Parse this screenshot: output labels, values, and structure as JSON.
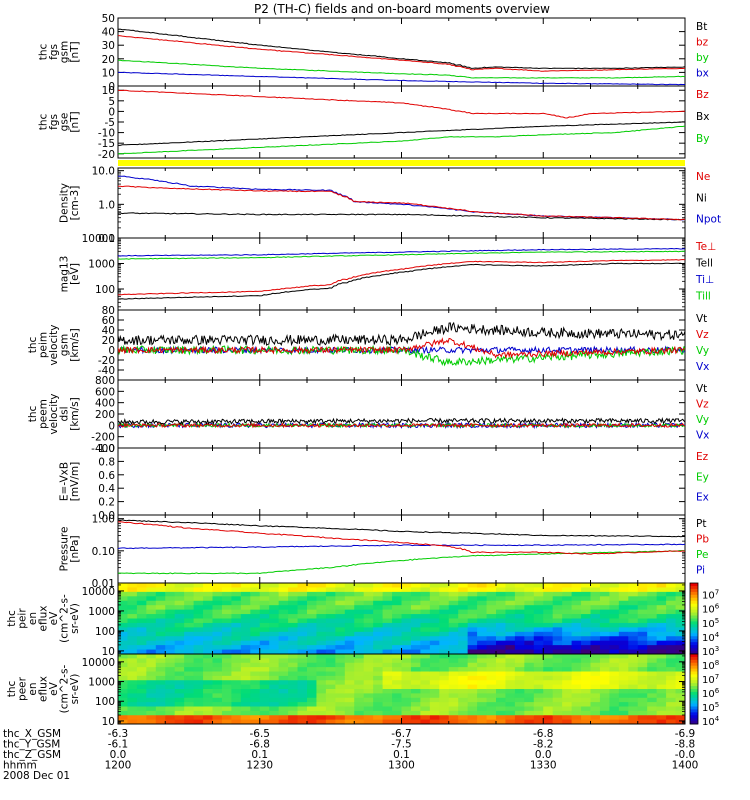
{
  "title": "P2 (TH-C) fields and on-board moments overview",
  "colors": {
    "black": "#000000",
    "red": "#e00000",
    "green": "#00cc00",
    "blue": "#0000cc",
    "yellow": "#ffff00"
  },
  "x_axis": {
    "ticks": [
      "1200",
      "1230",
      "1300",
      "1330",
      "1400"
    ],
    "rows": [
      {
        "label": "thc_X_GSM",
        "values": [
          "-6.3",
          "-6.5",
          "-6.7",
          "-6.8",
          "-6.9"
        ]
      },
      {
        "label": "thc_Y_GSM",
        "values": [
          "-6.1",
          "-6.8",
          "-7.5",
          "-8.2",
          "-8.8"
        ]
      },
      {
        "label": "thc_Z_GSM",
        "values": [
          "0.0",
          "0.1",
          "0.1",
          "0.0",
          "-0.0"
        ]
      },
      {
        "label": "hhmm",
        "values": [
          "1200",
          "1230",
          "1300",
          "1330",
          "1400"
        ]
      }
    ],
    "date": "2008 Dec 01"
  },
  "chart_data": [
    {
      "id": "fgs_gsm",
      "type": "line",
      "ylabel": [
        "thc",
        "fgs",
        "gsm",
        "[nT]"
      ],
      "ylim": [
        0,
        50
      ],
      "yticks": [
        "0",
        "10",
        "20",
        "30",
        "40",
        "50"
      ],
      "ytick_values": [
        0,
        10,
        20,
        30,
        40,
        50
      ],
      "series": [
        {
          "name": "Bt",
          "color": "#000000",
          "x": [
            1200,
            1215,
            1230,
            1245,
            1300,
            1310,
            1315,
            1320,
            1330,
            1345,
            1400
          ],
          "values": [
            42,
            36,
            30,
            25,
            20,
            17,
            13,
            14,
            13,
            13,
            14
          ]
        },
        {
          "name": "bz",
          "color": "#e00000",
          "x": [
            1200,
            1215,
            1230,
            1245,
            1300,
            1310,
            1315,
            1320,
            1330,
            1345,
            1400
          ],
          "values": [
            37,
            32,
            27,
            23,
            19,
            16,
            12,
            13,
            11,
            12,
            13
          ]
        },
        {
          "name": "by",
          "color": "#00cc00",
          "x": [
            1200,
            1215,
            1230,
            1245,
            1300,
            1310,
            1315,
            1330,
            1345,
            1400
          ],
          "values": [
            19,
            16,
            13,
            11,
            9,
            8,
            6,
            6,
            6,
            7
          ]
        },
        {
          "name": "bx",
          "color": "#0000cc",
          "x": [
            1200,
            1230,
            1300,
            1330,
            1400
          ],
          "values": [
            10,
            7,
            4,
            2,
            1
          ]
        }
      ]
    },
    {
      "id": "fgs_gse",
      "type": "line",
      "ylabel": [
        "thc",
        "fgs",
        "gse",
        "[nT]"
      ],
      "ylim": [
        -22,
        12
      ],
      "yticks": [
        "-20",
        "-15",
        "-10",
        "-5",
        "0",
        "5",
        "10"
      ],
      "ytick_values": [
        -20,
        -15,
        -10,
        -5,
        0,
        5,
        10
      ],
      "series": [
        {
          "name": "Bz",
          "color": "#e00000",
          "x": [
            1200,
            1220,
            1240,
            1300,
            1310,
            1315,
            1330,
            1335,
            1340,
            1400
          ],
          "values": [
            10,
            8,
            6,
            4,
            1,
            -1,
            -1,
            -3,
            -1,
            0
          ]
        },
        {
          "name": "Bx",
          "color": "#000000",
          "x": [
            1200,
            1220,
            1240,
            1300,
            1310,
            1320,
            1330,
            1345,
            1400
          ],
          "values": [
            -16,
            -14,
            -12,
            -10,
            -9,
            -8,
            -7,
            -6,
            -5
          ]
        },
        {
          "name": "By",
          "color": "#00cc00",
          "x": [
            1200,
            1220,
            1240,
            1300,
            1310,
            1320,
            1330,
            1345,
            1400
          ],
          "values": [
            -20,
            -18,
            -16,
            -14,
            -12,
            -12,
            -11,
            -10,
            -7
          ]
        }
      ]
    },
    {
      "id": "density",
      "type": "line",
      "ylabel": [
        "Density",
        "[cm-3]"
      ],
      "log": true,
      "ylim": [
        0.1,
        12
      ],
      "yticks": [
        "10.0",
        "1.0",
        "0.1"
      ],
      "ytick_values": [
        10,
        1,
        0.1
      ],
      "series": [
        {
          "name": "Ne",
          "color": "#e00000",
          "x": [
            1200,
            1210,
            1230,
            1245,
            1250,
            1300,
            1315,
            1330,
            1345,
            1400
          ],
          "values": [
            3.5,
            3.0,
            2.5,
            2.4,
            1.2,
            1.1,
            0.6,
            0.45,
            0.4,
            0.35
          ]
        },
        {
          "name": "Ni",
          "color": "#000000",
          "x": [
            1200,
            1230,
            1300,
            1330,
            1400
          ],
          "values": [
            0.55,
            0.5,
            0.5,
            0.4,
            0.35
          ]
        },
        {
          "name": "Npot",
          "color": "#0000cc",
          "x": [
            1200,
            1215,
            1230,
            1245,
            1250,
            1300,
            1315,
            1330,
            1345,
            1400
          ],
          "values": [
            7,
            3.5,
            2.8,
            2.6,
            1.2,
            1.0,
            0.6,
            0.45,
            0.4,
            0.35
          ]
        }
      ]
    },
    {
      "id": "temperature",
      "type": "line",
      "ylabel": [
        "mag13",
        "[eV]"
      ],
      "log": true,
      "ylim": [
        15,
        10000
      ],
      "yticks": [
        "10000",
        "1000",
        "100"
      ],
      "ytick_values": [
        10000,
        1000,
        100
      ],
      "series": [
        {
          "name": "Te⊥",
          "color": "#e00000",
          "x": [
            1200,
            1230,
            1245,
            1300,
            1315,
            1330,
            1345,
            1400
          ],
          "values": [
            60,
            80,
            150,
            600,
            1200,
            1100,
            1300,
            1400
          ]
        },
        {
          "name": "Tell",
          "color": "#000000",
          "x": [
            1200,
            1230,
            1245,
            1300,
            1315,
            1330,
            1345,
            1400
          ],
          "values": [
            40,
            55,
            110,
            450,
            900,
            800,
            1000,
            1000
          ]
        },
        {
          "name": "Ti⊥",
          "color": "#0000cc",
          "x": [
            1200,
            1230,
            1300,
            1330,
            1400
          ],
          "values": [
            2000,
            2200,
            2800,
            3500,
            3800
          ]
        },
        {
          "name": "Till",
          "color": "#00cc00",
          "x": [
            1200,
            1230,
            1300,
            1330,
            1400
          ],
          "values": [
            1500,
            1700,
            2200,
            2800,
            3000
          ]
        }
      ]
    },
    {
      "id": "velocity_gsm",
      "type": "line",
      "ylabel": [
        "thc",
        "peim",
        "velocity",
        "gsm",
        "[km/s]"
      ],
      "ylim": [
        -60,
        80
      ],
      "yticks": [
        "-40",
        "-20",
        "0",
        "20",
        "40",
        "60",
        "80"
      ],
      "ytick_values": [
        -40,
        -20,
        0,
        20,
        40,
        60,
        80
      ],
      "noise": true,
      "series": [
        {
          "name": "Vt",
          "color": "#000000",
          "x": [
            1200,
            1300,
            1310,
            1330,
            1400
          ],
          "values": [
            20,
            20,
            45,
            35,
            30
          ],
          "amp": 10
        },
        {
          "name": "Vz",
          "color": "#e00000",
          "x": [
            1200,
            1300,
            1310,
            1320,
            1400
          ],
          "values": [
            0,
            0,
            20,
            -10,
            0
          ],
          "amp": 6
        },
        {
          "name": "Vy",
          "color": "#00cc00",
          "x": [
            1200,
            1300,
            1310,
            1400
          ],
          "values": [
            0,
            0,
            -25,
            0
          ],
          "amp": 8
        },
        {
          "name": "Vx",
          "color": "#0000cc",
          "x": [
            1200,
            1300,
            1400
          ],
          "values": [
            0,
            0,
            0
          ],
          "amp": 6
        }
      ]
    },
    {
      "id": "velocity_dsl",
      "type": "line",
      "ylabel": [
        "thc",
        "peem",
        "velocity",
        "dsl",
        "[km/s]"
      ],
      "ylim": [
        -400,
        800
      ],
      "yticks": [
        "-400",
        "-200",
        "0",
        "200",
        "400",
        "600",
        "800"
      ],
      "ytick_values": [
        -400,
        -200,
        0,
        200,
        400,
        600,
        800
      ],
      "noise": true,
      "series": [
        {
          "name": "Vt",
          "color": "#000000",
          "x": [
            1200,
            1300,
            1400
          ],
          "values": [
            60,
            80,
            80
          ],
          "amp": 40
        },
        {
          "name": "Vz",
          "color": "#e00000",
          "x": [
            1200,
            1300,
            1400
          ],
          "values": [
            0,
            0,
            0
          ],
          "amp": 30
        },
        {
          "name": "Vy",
          "color": "#00cc00",
          "x": [
            1200,
            1300,
            1400
          ],
          "values": [
            0,
            0,
            0
          ],
          "amp": 30
        },
        {
          "name": "Vx",
          "color": "#0000cc",
          "x": [
            1200,
            1300,
            1400
          ],
          "values": [
            0,
            0,
            0
          ],
          "amp": 40
        }
      ]
    },
    {
      "id": "efield",
      "type": "line",
      "ylabel": [
        "E=-VxB",
        "[mV/m]"
      ],
      "ylim": [
        0,
        1.0
      ],
      "yticks": [
        "0.0",
        "0.2",
        "0.4",
        "0.6",
        "0.8",
        "1.0"
      ],
      "ytick_values": [
        0,
        0.2,
        0.4,
        0.6,
        0.8,
        1.0
      ],
      "series": [
        {
          "name": "Ez",
          "color": "#e00000",
          "x": [],
          "values": []
        },
        {
          "name": "Ey",
          "color": "#00cc00",
          "x": [],
          "values": []
        },
        {
          "name": "Ex",
          "color": "#0000cc",
          "x": [],
          "values": []
        }
      ]
    },
    {
      "id": "pressure",
      "type": "line",
      "ylabel": [
        "Pressure",
        "[nPa]"
      ],
      "log": true,
      "ylim": [
        0.01,
        1.3
      ],
      "yticks": [
        "1.00",
        "0.10",
        "0.01"
      ],
      "ytick_values": [
        1,
        0.1,
        0.01
      ],
      "series": [
        {
          "name": "Pt",
          "color": "#000000",
          "x": [
            1200,
            1230,
            1300,
            1330,
            1400
          ],
          "values": [
            0.9,
            0.6,
            0.4,
            0.3,
            0.28
          ]
        },
        {
          "name": "Pb",
          "color": "#e00000",
          "x": [
            1200,
            1215,
            1230,
            1245,
            1300,
            1310,
            1315,
            1330,
            1340,
            1400
          ],
          "values": [
            0.8,
            0.5,
            0.35,
            0.25,
            0.18,
            0.14,
            0.09,
            0.09,
            0.08,
            0.1
          ]
        },
        {
          "name": "Pe",
          "color": "#00cc00",
          "x": [
            1200,
            1230,
            1245,
            1300,
            1315,
            1330,
            1400
          ],
          "values": [
            0.02,
            0.02,
            0.03,
            0.05,
            0.07,
            0.08,
            0.1
          ]
        },
        {
          "name": "Pi",
          "color": "#0000cc",
          "x": [
            1200,
            1230,
            1300,
            1330,
            1400
          ],
          "values": [
            0.12,
            0.13,
            0.15,
            0.15,
            0.16
          ]
        }
      ]
    },
    {
      "id": "peir_spec",
      "type": "heatmap",
      "ylabel": [
        "thc",
        "peir",
        "en",
        "eflux",
        "eV",
        "(cm^2-s-",
        "sr-eV)"
      ],
      "log": true,
      "ylim": [
        7,
        25000
      ],
      "yticks": [
        "10000",
        "1000",
        "100",
        "10"
      ],
      "ytick_values": [
        10000,
        1000,
        100,
        10
      ],
      "colorbar": [
        "10^3",
        "10^4",
        "10^5",
        "10^6",
        "10^7"
      ]
    },
    {
      "id": "peer_spec",
      "type": "heatmap",
      "ylabel": [
        "thc",
        "peer",
        "en",
        "eflux",
        "eV",
        "(cm^2-s-",
        "sr-eV)"
      ],
      "log": true,
      "ylim": [
        7,
        25000
      ],
      "yticks": [
        "10000",
        "1000",
        "100",
        "10"
      ],
      "ytick_values": [
        10000,
        1000,
        100,
        10
      ],
      "colorbar": [
        "10^4",
        "10^5",
        "10^6",
        "10^7",
        "10^8"
      ]
    }
  ]
}
